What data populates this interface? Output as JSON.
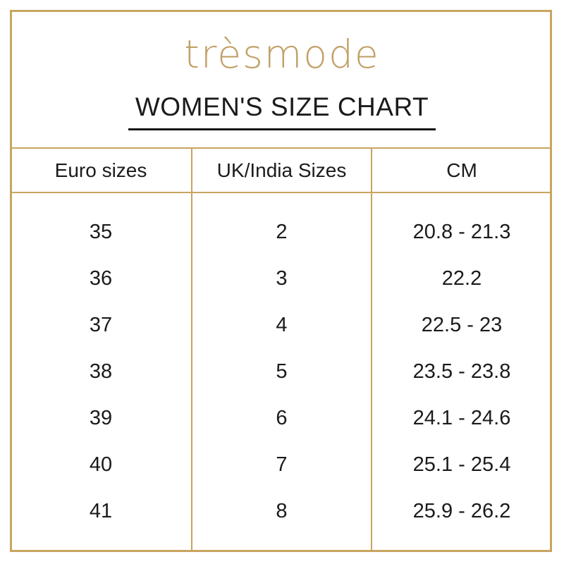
{
  "brand": {
    "logo_text": "trèsmode"
  },
  "chart_data": {
    "type": "table",
    "title": "WOMEN'S SIZE CHART",
    "columns": [
      "Euro sizes",
      "UK/India Sizes",
      "CM"
    ],
    "rows": [
      [
        "35",
        "2",
        "20.8 - 21.3"
      ],
      [
        "36",
        "3",
        "22.2"
      ],
      [
        "37",
        "4",
        "22.5 - 23"
      ],
      [
        "38",
        "5",
        "23.5 - 23.8"
      ],
      [
        "39",
        "6",
        "24.1 - 24.6"
      ],
      [
        "40",
        "7",
        "25.1 - 25.4"
      ],
      [
        "41",
        "8",
        "25.9 - 26.2"
      ]
    ]
  },
  "colors": {
    "gold": "#C8A45F",
    "logo-gold": "#C2A169",
    "text": "#1B1B1B",
    "background": "#FFFFFF"
  }
}
